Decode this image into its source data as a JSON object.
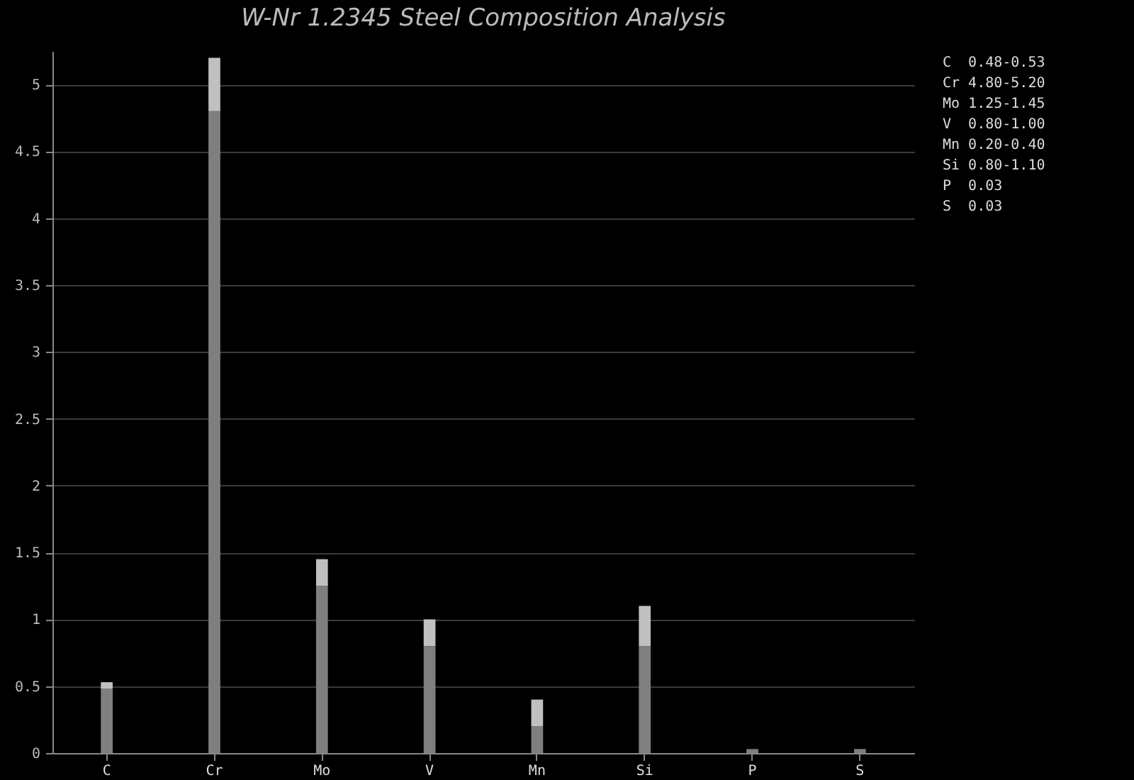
{
  "chart_data": {
    "type": "bar",
    "title": "W-Nr 1.2345 Steel Composition Analysis",
    "categories": [
      "C",
      "Cr",
      "Mo",
      "V",
      "Mn",
      "Si",
      "P",
      "S"
    ],
    "stacked": true,
    "series": [
      {
        "color": "#7f7f7f",
        "values": [
          0.48,
          4.8,
          1.25,
          0.8,
          0.2,
          0.8,
          0.03,
          0.03
        ]
      },
      {
        "color": "#c0c0c0",
        "values": [
          0.05,
          0.4,
          0.2,
          0.2,
          0.2,
          0.3,
          null,
          null
        ]
      }
    ],
    "ylim": [
      0,
      5.25
    ],
    "yticks": [
      0,
      0.5,
      1,
      1.5,
      2,
      2.5,
      3,
      3.5,
      4,
      4.5,
      5
    ],
    "grid": "y",
    "annotations": [
      "C  0.48-0.53",
      "Cr 4.80-5.20",
      "Mo 1.25-1.45",
      "V  0.80-1.00",
      "Mn 0.20-0.40",
      "Si 0.80-1.10",
      "P  0.03",
      "S  0.03"
    ]
  }
}
